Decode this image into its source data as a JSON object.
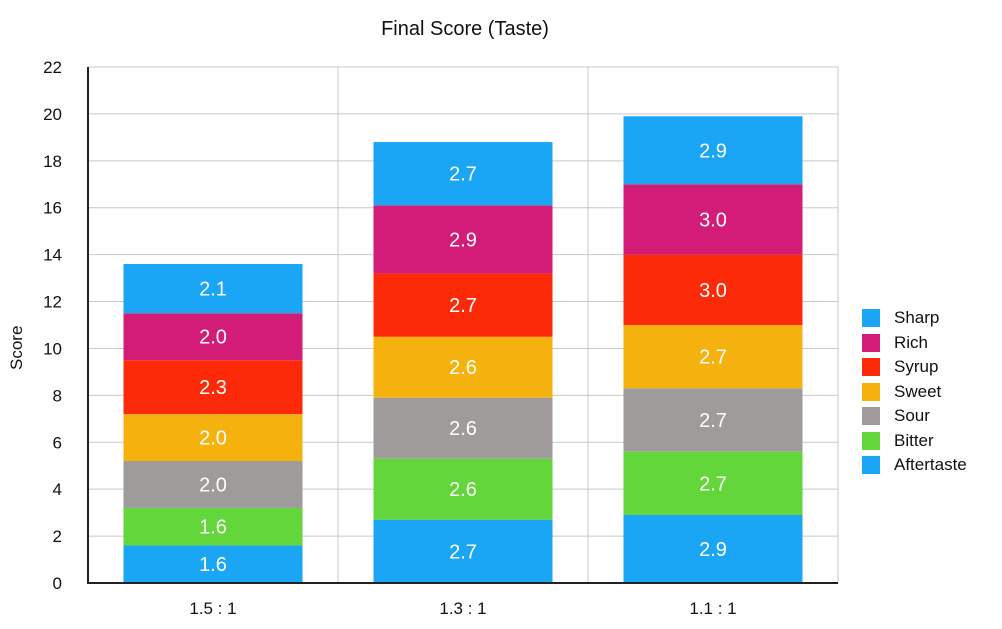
{
  "chart_data": {
    "type": "bar",
    "stacked": true,
    "title": "Final Score (Taste)",
    "xlabel": "",
    "ylabel": "Score",
    "ylim": [
      0,
      22
    ],
    "yticks": [
      0,
      2,
      4,
      6,
      8,
      10,
      12,
      14,
      16,
      18,
      20,
      22
    ],
    "categories": [
      "1.5 : 1",
      "1.3 : 1",
      "1.1 : 1"
    ],
    "grid": true,
    "legend_position": "right",
    "series": [
      {
        "name": "Aftertaste",
        "color": "#1aa6f5",
        "values": [
          1.6,
          2.7,
          2.9
        ],
        "labels": [
          "1.6",
          "2.7",
          "2.9"
        ]
      },
      {
        "name": "Bitter",
        "color": "#62d63a",
        "values": [
          1.6,
          2.6,
          2.7
        ],
        "labels": [
          "1.6",
          "2.6",
          "2.7"
        ]
      },
      {
        "name": "Sour",
        "color": "#9e9b9a",
        "values": [
          2.0,
          2.6,
          2.7
        ],
        "labels": [
          "2.0",
          "2.6",
          "2.7"
        ]
      },
      {
        "name": "Sweet",
        "color": "#f5b20f",
        "values": [
          2.0,
          2.6,
          2.7
        ],
        "labels": [
          "2.0",
          "2.6",
          "2.7"
        ]
      },
      {
        "name": "Syrup",
        "color": "#fd2a09",
        "values": [
          2.3,
          2.7,
          3.0
        ],
        "labels": [
          "2.3",
          "2.7",
          "3.0"
        ]
      },
      {
        "name": "Rich",
        "color": "#d21c78",
        "values": [
          2.0,
          2.9,
          3.0
        ],
        "labels": [
          "2.0",
          "2.9",
          "3.0"
        ]
      },
      {
        "name": "Sharp",
        "color": "#1aa6f5",
        "values": [
          2.1,
          2.7,
          2.9
        ],
        "labels": [
          "2.1",
          "2.7",
          "2.9"
        ]
      }
    ],
    "legend_order": [
      "Sharp",
      "Rich",
      "Syrup",
      "Sweet",
      "Sour",
      "Bitter",
      "Aftertaste"
    ]
  }
}
